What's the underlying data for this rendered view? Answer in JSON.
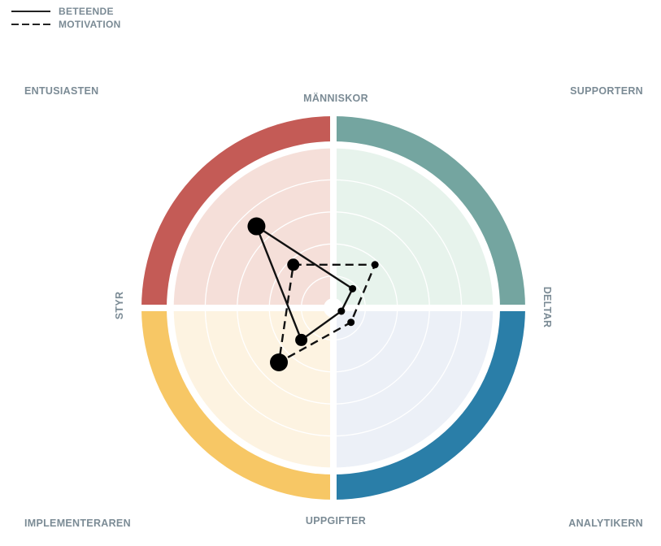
{
  "legend": {
    "items": [
      {
        "label": "BETEENDE",
        "style": "solid"
      },
      {
        "label": "MOTIVATION",
        "style": "dashed"
      }
    ]
  },
  "corners": {
    "top_left": "ENTUSIASTEN",
    "top_right": "SUPPORTERN",
    "bottom_left": "IMPLEMENTERAREN",
    "bottom_right": "ANALYTIKERN"
  },
  "chart_data": {
    "type": "radar",
    "axes": {
      "top": "MÄNNISKOR",
      "bottom": "UPPGIFTER",
      "left": "STYR",
      "right": "DELTAR"
    },
    "quadrants": [
      {
        "name": "ENTUSIASTEN",
        "ring_color": "#c45b56",
        "fill_color": "#f5dfd9"
      },
      {
        "name": "SUPPORTERN",
        "ring_color": "#74a5a0",
        "fill_color": "#e7f3ec"
      },
      {
        "name": "ANALYTIKERN",
        "ring_color": "#2a7ea8",
        "fill_color": "#ecf0f7"
      },
      {
        "name": "IMPLEMENTERAREN",
        "ring_color": "#f7c765",
        "fill_color": "#fdf3e1"
      }
    ],
    "scale": {
      "min": 0,
      "max": 5,
      "rings": 5
    },
    "series": [
      {
        "name": "BETEENDE",
        "style": "solid",
        "points": [
          {
            "x": -2.4,
            "y": 2.55,
            "size": "large"
          },
          {
            "x": 0.6,
            "y": 0.6,
            "size": "small"
          },
          {
            "x": 0.25,
            "y": -0.1,
            "size": "small"
          },
          {
            "x": -1.0,
            "y": -1.0,
            "size": "medium"
          }
        ]
      },
      {
        "name": "MOTIVATION",
        "style": "dashed",
        "points": [
          {
            "x": -1.25,
            "y": 1.35,
            "size": "medium"
          },
          {
            "x": 1.3,
            "y": 1.35,
            "size": "small"
          },
          {
            "x": 0.55,
            "y": -0.45,
            "size": "small"
          },
          {
            "x": -1.7,
            "y": -1.7,
            "size": "large"
          }
        ]
      }
    ]
  }
}
